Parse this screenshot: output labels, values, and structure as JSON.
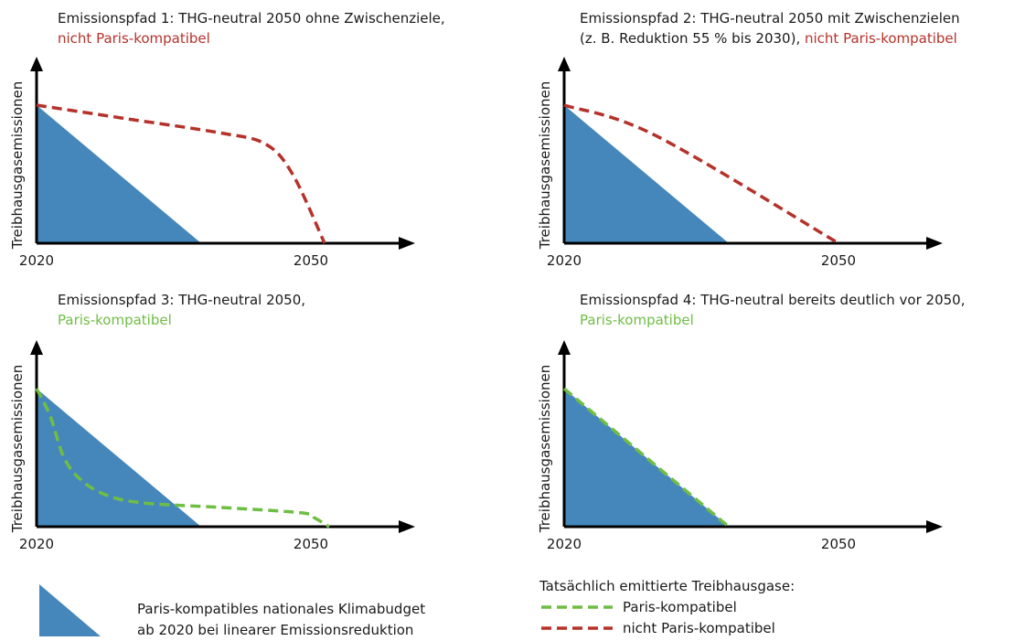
{
  "colors": {
    "budget": "#4587bb",
    "not_paris": "#b5322a",
    "paris": "#6fbe44",
    "axis": "#000000"
  },
  "panels": [
    {
      "title_line1": "Emissionspfad 1: THG-neutral 2050 ohne Zwischenziele,",
      "title_line2_prefix": "",
      "title_line2_colored": "nicht Paris-kompatibel",
      "status": "not_paris"
    },
    {
      "title_line1": "Emissionspfad 2: THG-neutral 2050 mit Zwischenzielen",
      "title_line2_prefix": "(z. B. Reduktion 55 % bis 2030), ",
      "title_line2_colored": "nicht Paris-kompatibel",
      "status": "not_paris"
    },
    {
      "title_line1": "Emissionspfad 3: THG-neutral 2050,",
      "title_line2_prefix": "",
      "title_line2_colored": "Paris-kompatibel",
      "status": "paris"
    },
    {
      "title_line1": "Emissionspfad 4: THG-neutral bereits deutlich vor 2050,",
      "title_line2_prefix": "",
      "title_line2_colored": "Paris-kompatibel",
      "status": "paris"
    }
  ],
  "chart_data": [
    {
      "type": "area",
      "ylabel": "Treibhausgasemissionen",
      "x_ticks": [
        2020,
        2050
      ],
      "xlim": [
        2020,
        2060
      ],
      "ylim": [
        0,
        1
      ],
      "series": [
        {
          "name": "Paris-kompatibles nationales Klimabudget ab 2020 bei linearer Emissionsreduktion",
          "style": "area",
          "x": [
            2020,
            2038
          ],
          "y": [
            1.0,
            0.0
          ]
        },
        {
          "name": "nicht Paris-kompatibel",
          "style": "dashed",
          "x": [
            2020,
            2030,
            2040,
            2045,
            2048,
            2051.5
          ],
          "y": [
            1.0,
            0.9,
            0.8,
            0.72,
            0.5,
            0.0
          ]
        }
      ]
    },
    {
      "type": "area",
      "ylabel": "Treibhausgasemissionen",
      "x_ticks": [
        2020,
        2050
      ],
      "xlim": [
        2020,
        2060
      ],
      "ylim": [
        0,
        1
      ],
      "series": [
        {
          "name": "Paris-kompatibles nationales Klimabudget ab 2020 bei linearer Emissionsreduktion",
          "style": "area",
          "x": [
            2020,
            2038
          ],
          "y": [
            1.0,
            0.0
          ]
        },
        {
          "name": "nicht Paris-kompatibel",
          "style": "dashed",
          "x": [
            2020,
            2030,
            2050
          ],
          "y": [
            1.0,
            0.78,
            0.0
          ]
        }
      ]
    },
    {
      "type": "area",
      "ylabel": "Treibhausgasemissionen",
      "x_ticks": [
        2020,
        2050
      ],
      "xlim": [
        2020,
        2060
      ],
      "ylim": [
        0,
        1
      ],
      "series": [
        {
          "name": "Paris-kompatibles nationales Klimabudget ab 2020 bei linearer Emissionsreduktion",
          "style": "area",
          "x": [
            2020,
            2038
          ],
          "y": [
            1.0,
            0.0
          ]
        },
        {
          "name": "Paris-kompatibel",
          "style": "dashed",
          "x": [
            2020,
            2021.5,
            2023,
            2025,
            2028,
            2032,
            2040,
            2049,
            2050.5,
            2052
          ],
          "y": [
            1.0,
            0.8,
            0.5,
            0.33,
            0.22,
            0.17,
            0.14,
            0.1,
            0.06,
            0.0
          ]
        }
      ]
    },
    {
      "type": "area",
      "ylabel": "Treibhausgasemissionen",
      "x_ticks": [
        2020,
        2050
      ],
      "xlim": [
        2020,
        2060
      ],
      "ylim": [
        0,
        1
      ],
      "series": [
        {
          "name": "Paris-kompatibles nationales Klimabudget ab 2020 bei linearer Emissionsreduktion",
          "style": "area",
          "x": [
            2020,
            2038
          ],
          "y": [
            1.0,
            0.0
          ]
        },
        {
          "name": "Paris-kompatibel",
          "style": "dashed",
          "x": [
            2020,
            2038
          ],
          "y": [
            1.0,
            0.0
          ]
        }
      ]
    }
  ],
  "legend": {
    "budget_label_line1": "Paris-kompatibles nationales Klimabudget",
    "budget_label_line2": "ab 2020 bei linearer Emissionsreduktion",
    "header": "Tatsächlich emittierte Treibhausgase:",
    "paris_label": "Paris-kompatibel",
    "not_paris_label": "nicht Paris-kompatibel"
  }
}
